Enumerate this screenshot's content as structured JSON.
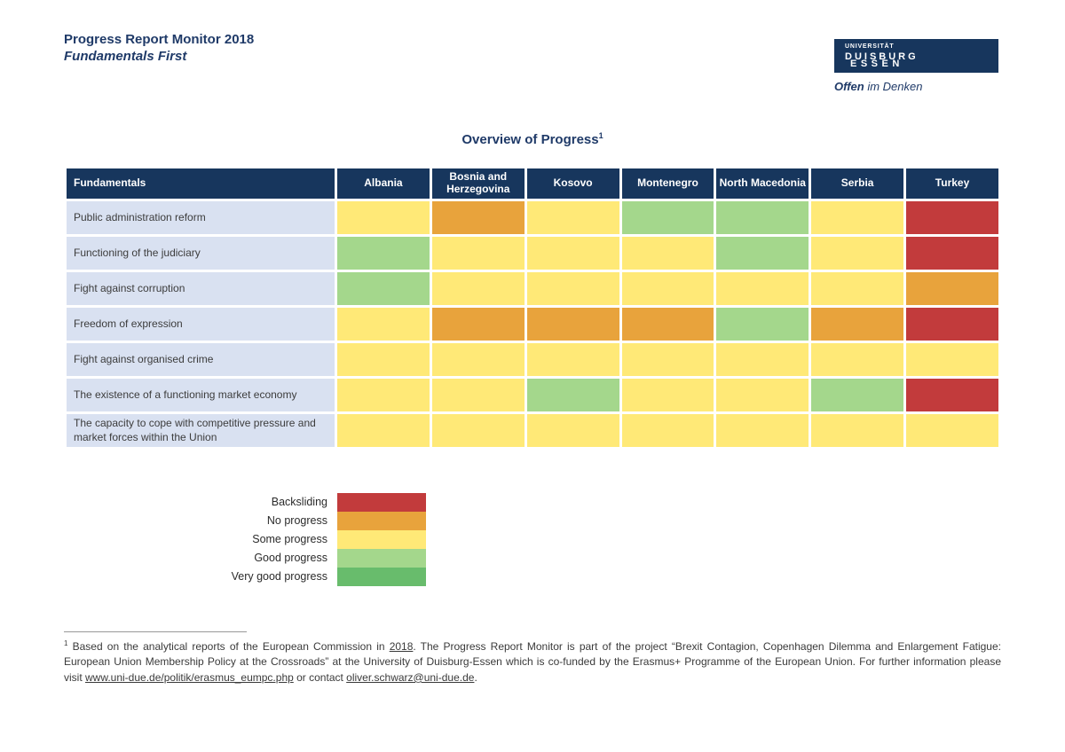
{
  "header": {
    "title": "Progress Report Monitor 2018",
    "subtitle": "Fundamentals First"
  },
  "logo": {
    "top": "UNIVERSITÄT",
    "line1": "DUISBURG",
    "line2": "ESSEN",
    "slogan_bold": "Offen",
    "slogan_rest": "im Denken"
  },
  "colors": {
    "header_bg": "#17365d",
    "row_label_bg": "#d9e1f1",
    "title_text": "#1f3a68"
  },
  "table": {
    "title": "Overview of Progress",
    "title_superscript": "1",
    "corner_header": "Fundamentals",
    "columns": [
      "Albania",
      "Bosnia and Herzegovina",
      "Kosovo",
      "Montenegro",
      "North Macedonia",
      "Serbia",
      "Turkey"
    ],
    "rows": [
      {
        "label": "Public administration reform",
        "values": [
          "some",
          "no",
          "some",
          "good",
          "good",
          "some",
          "backsliding"
        ]
      },
      {
        "label": "Functioning of the judiciary",
        "values": [
          "good",
          "some",
          "some",
          "some",
          "good",
          "some",
          "backsliding"
        ]
      },
      {
        "label": "Fight against corruption",
        "values": [
          "good",
          "some",
          "some",
          "some",
          "some",
          "some",
          "no"
        ]
      },
      {
        "label": "Freedom of expression",
        "values": [
          "some",
          "no",
          "no",
          "no",
          "good",
          "no",
          "backsliding"
        ]
      },
      {
        "label": "Fight against organised crime",
        "values": [
          "some",
          "some",
          "some",
          "some",
          "some",
          "some",
          "some"
        ]
      },
      {
        "label": "The existence of a functioning market economy",
        "values": [
          "some",
          "some",
          "good",
          "some",
          "some",
          "good",
          "backsliding"
        ]
      },
      {
        "label": "The capacity to cope with competitive pressure and market forces within the Union",
        "values": [
          "some",
          "some",
          "some",
          "some",
          "some",
          "some",
          "some"
        ]
      }
    ]
  },
  "levels": {
    "backsliding": {
      "label": "Backsliding",
      "color": "#c23b3c"
    },
    "no": {
      "label": "No progress",
      "color": "#e8a33c"
    },
    "some": {
      "label": "Some progress",
      "color": "#ffe977"
    },
    "good": {
      "label": "Good progress",
      "color": "#a4d78c"
    },
    "verygood": {
      "label": "Very good progress",
      "color": "#68bc6c"
    }
  },
  "legend_order": [
    "backsliding",
    "no",
    "some",
    "good",
    "verygood"
  ],
  "footnote": {
    "superscript": "1",
    "segments": [
      {
        "text": " Based on the analytical reports of the European Commission in ",
        "link": false
      },
      {
        "text": "2018",
        "link": true
      },
      {
        "text": ". The Progress Report Monitor is part of the project “Brexit Contagion, Copenhagen Dilemma and Enlargement Fatigue: European Union Membership Policy at the Crossroads” at the University of Duisburg-Essen which is co-funded by the Erasmus+ Programme of the European Union. For further information please visit ",
        "link": false
      },
      {
        "text": "www.uni-due.de/politik/erasmus_eumpc.php",
        "link": true
      },
      {
        "text": " or contact ",
        "link": false
      },
      {
        "text": "oliver.schwarz@uni-due.de",
        "link": true
      },
      {
        "text": ".",
        "link": false
      }
    ]
  },
  "chart_data": {
    "type": "heatmap",
    "title": "Overview of Progress",
    "x_categories": [
      "Albania",
      "Bosnia and Herzegovina",
      "Kosovo",
      "Montenegro",
      "North Macedonia",
      "Serbia",
      "Turkey"
    ],
    "y_categories": [
      "Public administration reform",
      "Functioning of the judiciary",
      "Fight against corruption",
      "Freedom of expression",
      "Fight against organised crime",
      "The existence of a functioning market economy",
      "The capacity to cope with competitive pressure and market forces within the Union"
    ],
    "values": [
      [
        "Some progress",
        "No progress",
        "Some progress",
        "Good progress",
        "Good progress",
        "Some progress",
        "Backsliding"
      ],
      [
        "Good progress",
        "Some progress",
        "Some progress",
        "Some progress",
        "Good progress",
        "Some progress",
        "Backsliding"
      ],
      [
        "Good progress",
        "Some progress",
        "Some progress",
        "Some progress",
        "Some progress",
        "Some progress",
        "No progress"
      ],
      [
        "Some progress",
        "No progress",
        "No progress",
        "No progress",
        "Good progress",
        "No progress",
        "Backsliding"
      ],
      [
        "Some progress",
        "Some progress",
        "Some progress",
        "Some progress",
        "Some progress",
        "Some progress",
        "Some progress"
      ],
      [
        "Some progress",
        "Some progress",
        "Good progress",
        "Some progress",
        "Some progress",
        "Good progress",
        "Backsliding"
      ],
      [
        "Some progress",
        "Some progress",
        "Some progress",
        "Some progress",
        "Some progress",
        "Some progress",
        "Some progress"
      ]
    ],
    "legend": [
      "Backsliding",
      "No progress",
      "Some progress",
      "Good progress",
      "Very good progress"
    ],
    "legend_position": "bottom-left"
  }
}
